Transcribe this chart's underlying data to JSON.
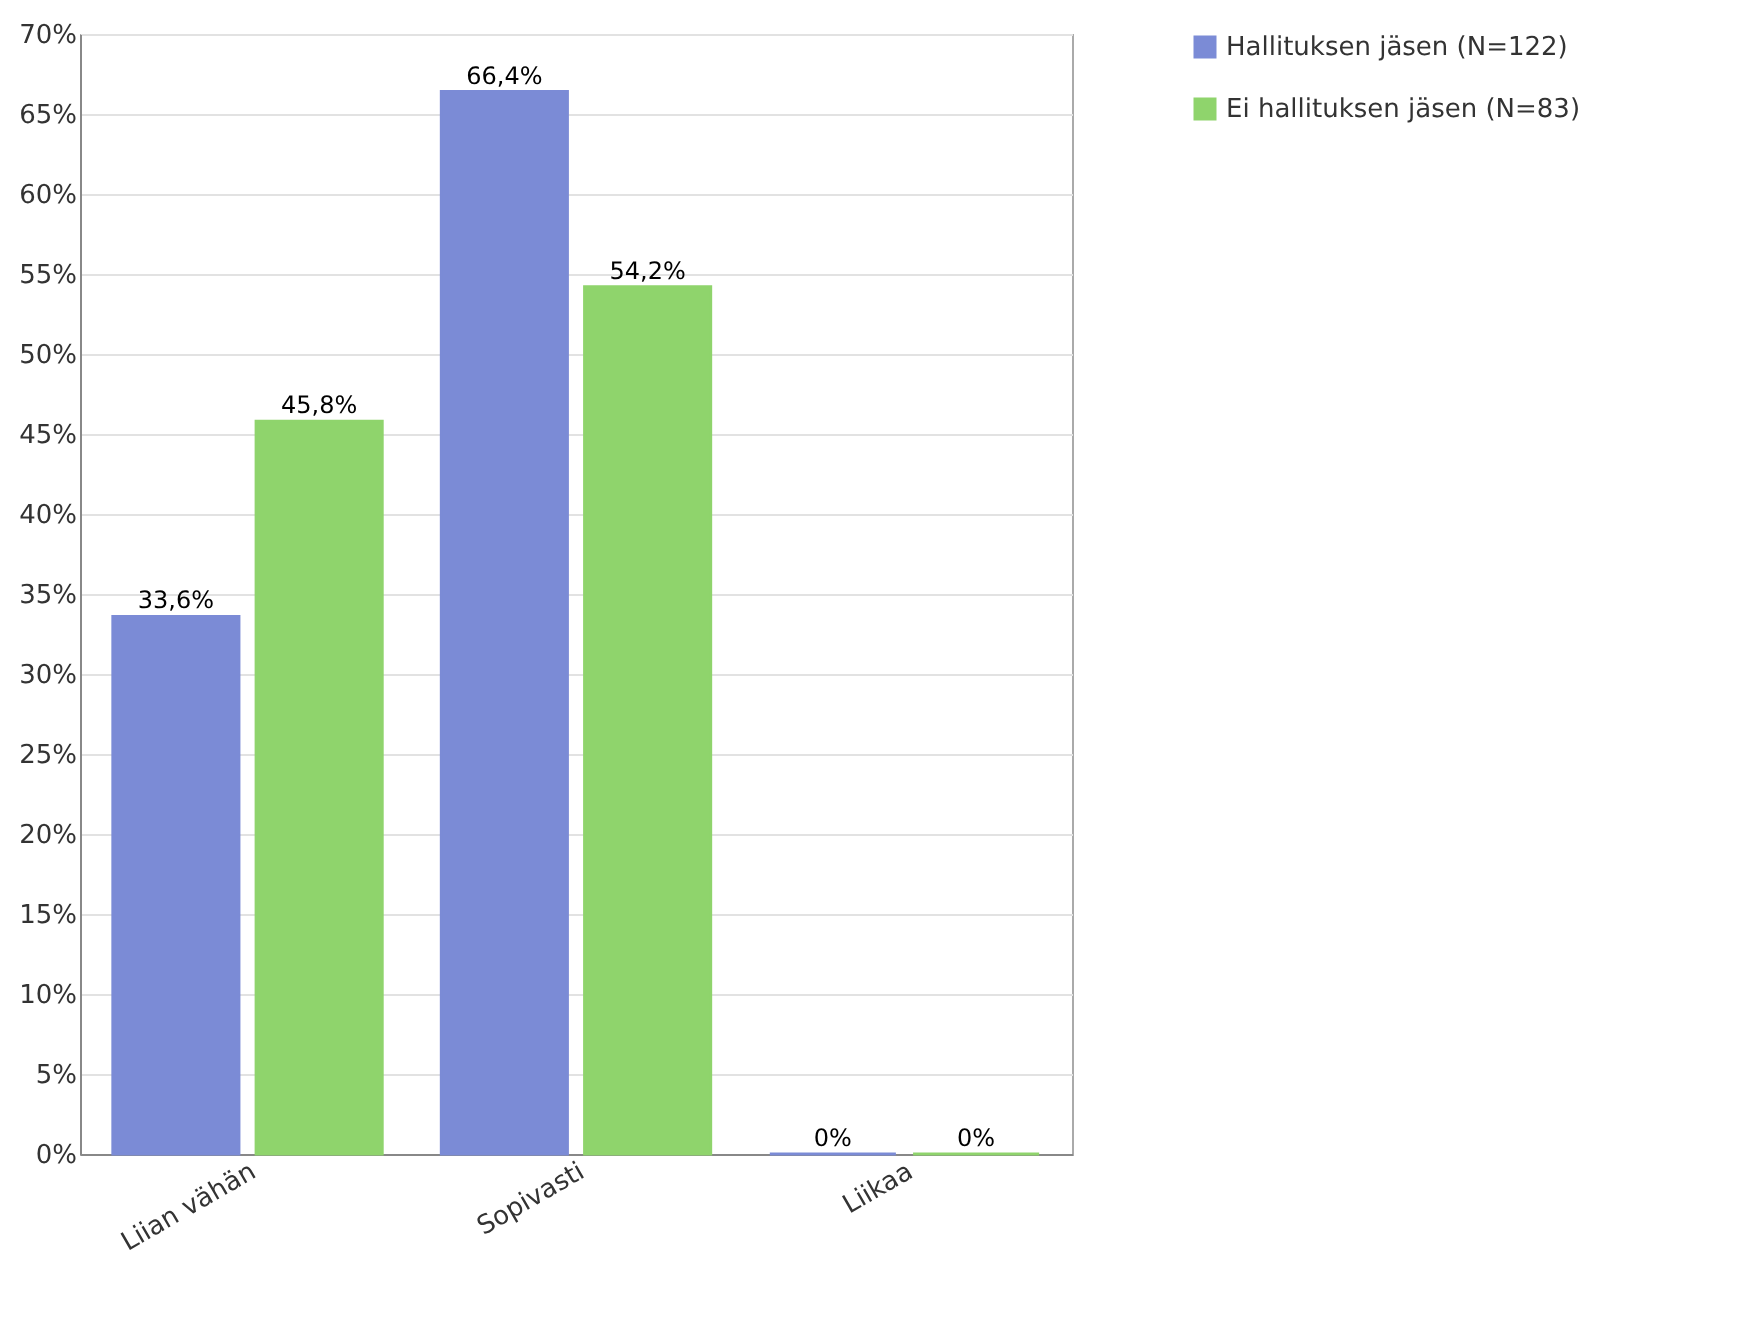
{
  "chart_data": {
    "type": "bar",
    "categories": [
      "Liian vähän",
      "Sopivasti",
      "Liikaa"
    ],
    "series": [
      {
        "name": "Hallituksen jäsen (N=122)",
        "color": "#7b8bd6",
        "values": [
          33.6,
          66.4,
          0
        ],
        "value_labels": [
          "33,6%",
          "66,4%",
          "0%"
        ]
      },
      {
        "name": "Ei hallituksen jäsen (N=83)",
        "color": "#8fd46c",
        "values": [
          45.8,
          54.2,
          0
        ],
        "value_labels": [
          "45,8%",
          "54,2%",
          "0%"
        ]
      }
    ],
    "ylim": [
      0,
      70
    ],
    "yticks": [
      {
        "value": 0,
        "label": "0%"
      },
      {
        "value": 5,
        "label": "5%"
      },
      {
        "value": 10,
        "label": "10%"
      },
      {
        "value": 15,
        "label": "15%"
      },
      {
        "value": 20,
        "label": "20%"
      },
      {
        "value": 25,
        "label": "25%"
      },
      {
        "value": 30,
        "label": "30%"
      },
      {
        "value": 35,
        "label": "35%"
      },
      {
        "value": 40,
        "label": "40%"
      },
      {
        "value": 45,
        "label": "45%"
      },
      {
        "value": 50,
        "label": "50%"
      },
      {
        "value": 55,
        "label": "55%"
      },
      {
        "value": 60,
        "label": "60%"
      },
      {
        "value": 65,
        "label": "65%"
      },
      {
        "value": 70,
        "label": "70%"
      }
    ],
    "grid": "y",
    "legend": "right"
  }
}
